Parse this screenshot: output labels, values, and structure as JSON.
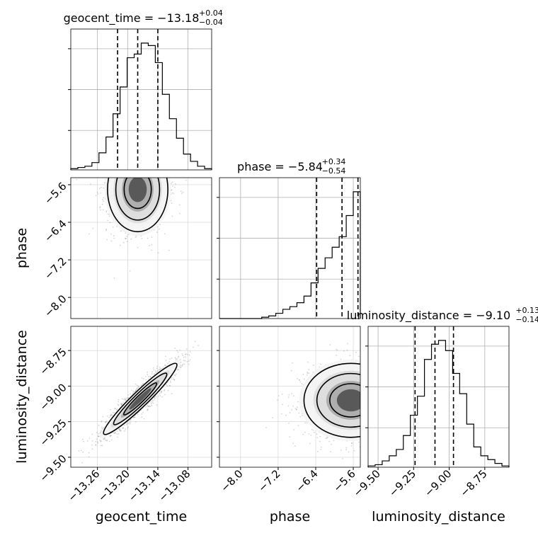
{
  "chart_data": {
    "type": "corner",
    "grid": true,
    "parameters": [
      "geocent_time",
      "phase",
      "luminosity_distance"
    ],
    "titles": [
      {
        "param": "geocent_time",
        "text": "geocent_time = −13.18",
        "upper": "+0.04",
        "lower": "−0.04"
      },
      {
        "param": "phase",
        "text": "phase = −5.84",
        "upper": "+0.34",
        "lower": "−0.54"
      },
      {
        "param": "luminosity_distance",
        "text": "luminosity_distance = −9.10",
        "upper": "+0.13",
        "lower": "−0.14"
      }
    ],
    "axis_labels": {
      "geocent_time": "geocent_time",
      "phase": "phase",
      "luminosity_distance": "luminosity_distance"
    },
    "ranges": {
      "geocent_time": [
        -13.313,
        -13.033
      ],
      "phase": [
        -8.45,
        -5.45
      ],
      "luminosity_distance": [
        -9.57,
        -8.58
      ]
    },
    "ticks": {
      "geocent_time": {
        "values": [
          -13.26,
          -13.2,
          -13.14,
          -13.08
        ],
        "labels": [
          "−13.26",
          "−13.20",
          "−13.14",
          "−13.08"
        ]
      },
      "phase": {
        "values": [
          -8.0,
          -7.2,
          -6.4,
          -5.6
        ],
        "labels": [
          "−8.0",
          "−7.2",
          "−6.4",
          "−5.6"
        ]
      },
      "luminosity_distance": {
        "values": [
          -9.5,
          -9.25,
          -9.0,
          -8.75
        ],
        "labels": [
          "−9.50",
          "−9.25",
          "−9.00",
          "−8.75"
        ]
      }
    },
    "quantiles": {
      "geocent_time": [
        -13.22,
        -13.18,
        -13.14
      ],
      "phase": [
        -6.38,
        -5.84,
        -5.5
      ],
      "luminosity_distance": [
        -9.24,
        -9.1,
        -8.97
      ]
    },
    "histograms": {
      "geocent_time": {
        "bin_start": -13.313,
        "bin_width": 0.014,
        "counts": [
          1,
          2,
          3,
          6,
          14,
          27,
          46,
          68,
          92,
          95,
          104,
          102,
          88,
          62,
          42,
          26,
          13,
          7,
          3,
          1
        ]
      },
      "phase": {
        "bin_start": -8.45,
        "bin_width": 0.15,
        "counts": [
          0,
          0,
          0,
          0,
          0,
          0,
          1,
          2,
          4,
          7,
          9,
          12,
          17,
          27,
          38,
          46,
          54,
          62,
          78,
          96
        ]
      },
      "luminosity_distance": {
        "bin_start": -9.57,
        "bin_width": 0.0495,
        "counts": [
          1,
          2,
          5,
          9,
          14,
          25,
          41,
          56,
          85,
          97,
          100,
          92,
          74,
          58,
          34,
          16,
          9,
          6,
          3,
          1
        ]
      }
    },
    "joint": [
      {
        "x": "geocent_time",
        "y": "phase",
        "mean": [
          -13.18,
          -5.7
        ],
        "sd": [
          0.03,
          0.45
        ],
        "corr": 0,
        "n_points": 1600
      },
      {
        "x": "geocent_time",
        "y": "luminosity_distance",
        "mean": [
          -13.175,
          -9.09
        ],
        "sd": [
          0.038,
          0.13
        ],
        "corr": 0.93,
        "n_points": 1600
      },
      {
        "x": "phase",
        "y": "luminosity_distance",
        "mean": [
          -5.65,
          -9.1
        ],
        "sd": [
          0.5,
          0.13
        ],
        "corr": 0,
        "n_points": 1600
      }
    ]
  }
}
